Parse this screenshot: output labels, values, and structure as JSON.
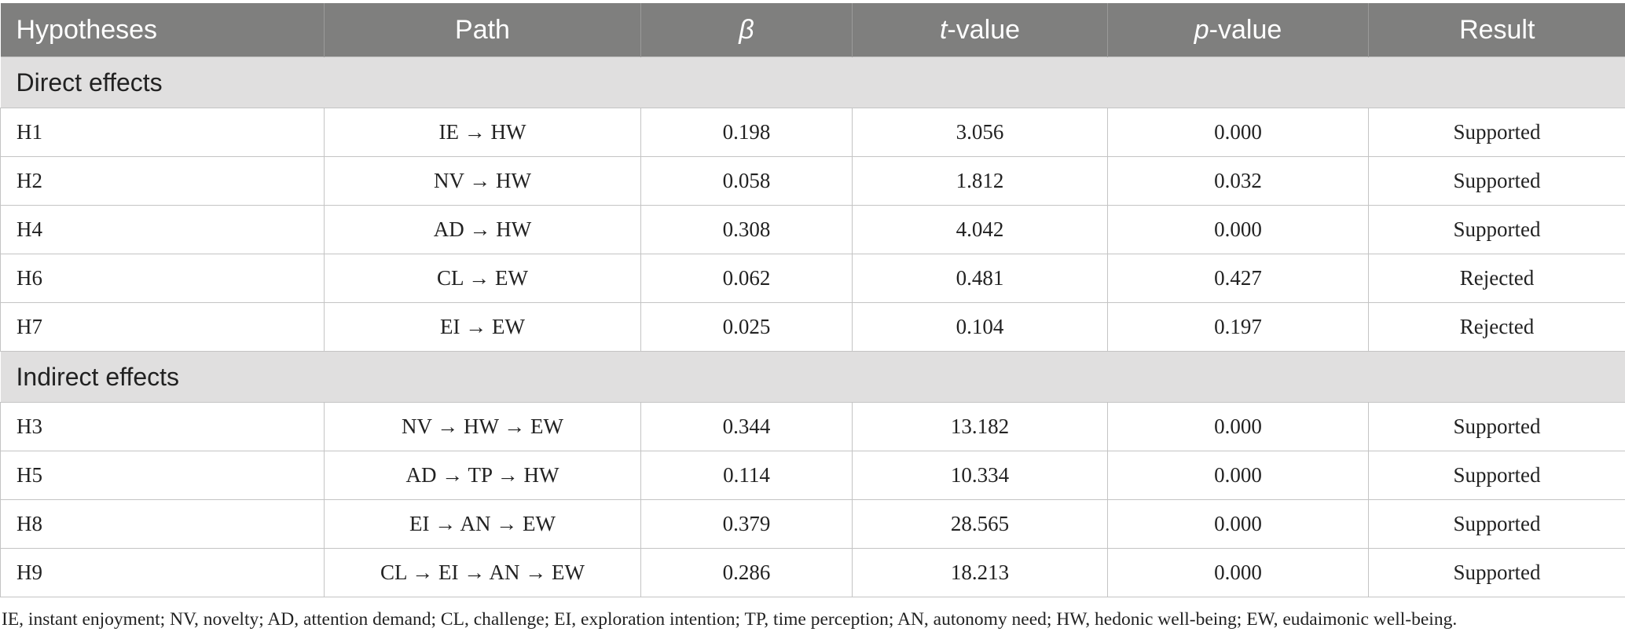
{
  "table": {
    "headers": {
      "hypotheses": "Hypotheses",
      "path": "Path",
      "beta": "β",
      "t_italic": "t",
      "t_rest": "-value",
      "p_italic": "p",
      "p_rest": "-value",
      "result": "Result"
    },
    "sections": [
      {
        "title": "Direct effects",
        "rows": [
          [
            "H1",
            "IE → HW",
            "0.198",
            "3.056",
            "0.000",
            "Supported"
          ],
          [
            "H2",
            "NV → HW",
            "0.058",
            "1.812",
            "0.032",
            "Supported"
          ],
          [
            "H4",
            "AD → HW",
            "0.308",
            "4.042",
            "0.000",
            "Supported"
          ],
          [
            "H6",
            "CL → EW",
            "0.062",
            "0.481",
            "0.427",
            "Rejected"
          ],
          [
            "H7",
            "EI → EW",
            "0.025",
            "0.104",
            "0.197",
            "Rejected"
          ]
        ]
      },
      {
        "title": "Indirect effects",
        "rows": [
          [
            "H3",
            "NV → HW → EW",
            "0.344",
            "13.182",
            "0.000",
            "Supported"
          ],
          [
            "H5",
            "AD → TP → HW",
            "0.114",
            "10.334",
            "0.000",
            "Supported"
          ],
          [
            "H8",
            "EI → AN → EW",
            "0.379",
            "28.565",
            "0.000",
            "Supported"
          ],
          [
            "H9",
            "CL → EI → AN → EW",
            "0.286",
            "18.213",
            "0.000",
            "Supported"
          ]
        ]
      }
    ]
  },
  "footnote": "IE, instant enjoyment; NV, novelty; AD, attention demand; CL, challenge; EI, exploration intention; TP, time perception; AN, autonomy need; HW, hedonic well-being; EW, eudaimonic well-being.",
  "colors": {
    "header_bg": "#7f7f7e",
    "section_bg": "#e0dfdf",
    "border": "#c4c4c4"
  }
}
